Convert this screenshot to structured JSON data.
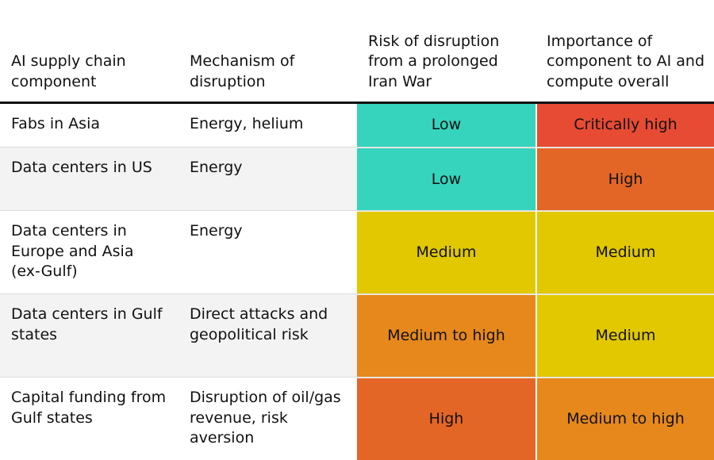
{
  "headers": [
    "AI supply chain component",
    "Mechanism of disruption",
    "Risk of disruption from a prolonged Iran War",
    "Importance of component to AI and compute overall"
  ],
  "colors": {
    "Low": "#36d3bd",
    "Medium": "#e1c800",
    "Medium to high": "#e6881c",
    "High": "#e46626",
    "Critically high": "#e84b33"
  },
  "rows": [
    {
      "component": "Fabs in Asia",
      "mechanism": "Energy, helium",
      "risk": "Low",
      "importance": "Critically high"
    },
    {
      "component": "Data centers in US",
      "mechanism": "Energy",
      "risk": "Low",
      "importance": "High"
    },
    {
      "component": "Data centers in Europe and Asia (ex-Gulf)",
      "mechanism": "Energy",
      "risk": "Medium",
      "importance": "Medium"
    },
    {
      "component": "Data centers in Gulf states",
      "mechanism": "Direct attacks and geopolitical risk",
      "risk": "Medium to high",
      "importance": "Medium"
    },
    {
      "component": "Capital funding from Gulf states",
      "mechanism": "Disruption of oil/gas revenue, risk aversion",
      "risk": "High",
      "importance": "Medium to high"
    }
  ]
}
